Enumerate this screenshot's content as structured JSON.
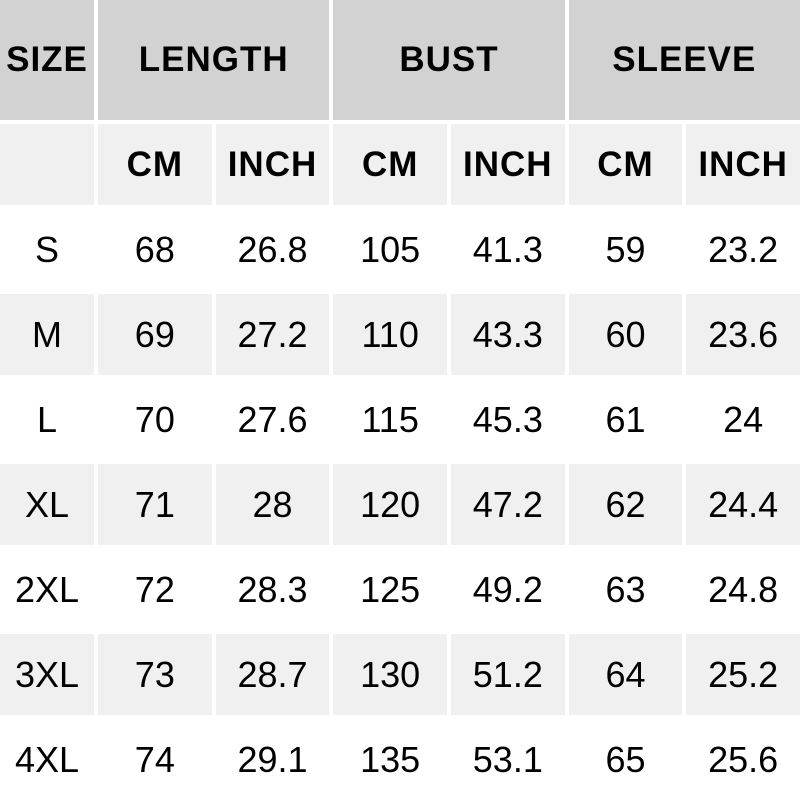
{
  "chart_data": {
    "type": "table",
    "title": "",
    "column_groups": [
      {
        "label": "SIZE",
        "span": 1
      },
      {
        "label": "LENGTH",
        "span": 2
      },
      {
        "label": "BUST",
        "span": 2
      },
      {
        "label": "SLEEVE",
        "span": 2
      }
    ],
    "unit_row": [
      "",
      "CM",
      "INCH",
      "CM",
      "INCH",
      "CM",
      "INCH"
    ],
    "columns": [
      "SIZE",
      "LENGTH CM",
      "LENGTH INCH",
      "BUST CM",
      "BUST INCH",
      "SLEEVE CM",
      "SLEEVE INCH"
    ],
    "rows": [
      {
        "size": "S",
        "values": [
          68,
          26.8,
          105,
          41.3,
          59,
          23.2
        ]
      },
      {
        "size": "M",
        "values": [
          69,
          27.2,
          110,
          43.3,
          60,
          23.6
        ]
      },
      {
        "size": "L",
        "values": [
          70,
          27.6,
          115,
          45.3,
          61,
          24
        ]
      },
      {
        "size": "XL",
        "values": [
          71,
          28,
          120,
          47.2,
          62,
          24.4
        ]
      },
      {
        "size": "2XL",
        "values": [
          72,
          28.3,
          125,
          49.2,
          63,
          24.8
        ]
      },
      {
        "size": "3XL",
        "values": [
          73,
          28.7,
          130,
          51.2,
          64,
          25.2
        ]
      },
      {
        "size": "4XL",
        "values": [
          74,
          29.1,
          135,
          53.1,
          65,
          25.6
        ]
      }
    ],
    "layout_hints": {
      "grid": "cells separated by white gutters",
      "row_striping": "unit row and alternating data rows shaded"
    }
  },
  "colors": {
    "header_bg": "#d2d2d2",
    "shaded_row_bg": "#f0f0f0",
    "plain_row_bg": "#ffffff",
    "gutter": "#ffffff",
    "text": "#000000"
  }
}
